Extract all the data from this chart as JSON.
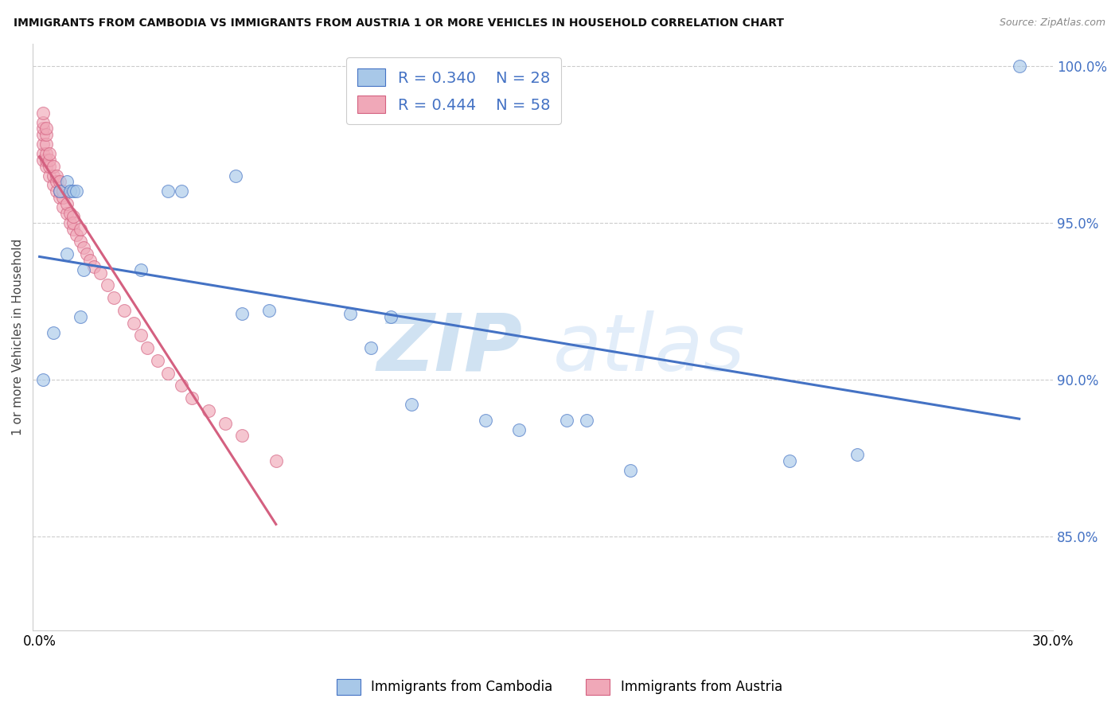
{
  "title": "IMMIGRANTS FROM CAMBODIA VS IMMIGRANTS FROM AUSTRIA 1 OR MORE VEHICLES IN HOUSEHOLD CORRELATION CHART",
  "source": "Source: ZipAtlas.com",
  "ylabel": "1 or more Vehicles in Household",
  "xlim": [
    0.0,
    0.3
  ],
  "ylim": [
    0.82,
    1.007
  ],
  "yticks": [
    0.85,
    0.9,
    0.95,
    1.0
  ],
  "ytick_labels": [
    "85.0%",
    "90.0%",
    "95.0%",
    "100.0%"
  ],
  "xticks": [
    0.0,
    0.05,
    0.1,
    0.15,
    0.2,
    0.25,
    0.3
  ],
  "xtick_labels": [
    "0.0%",
    "",
    "",
    "",
    "",
    "",
    "30.0%"
  ],
  "legend_r_cambodia": "R = 0.340",
  "legend_n_cambodia": "N = 28",
  "legend_r_austria": "R = 0.444",
  "legend_n_austria": "N = 58",
  "color_cambodia": "#a8c8e8",
  "color_austria": "#f0a8b8",
  "trendline_color_cambodia": "#4472c4",
  "trendline_color_austria": "#d46080",
  "watermark_zip": "ZIP",
  "watermark_atlas": "atlas",
  "cambodia_x": [
    0.001,
    0.004,
    0.006,
    0.008,
    0.009,
    0.01,
    0.011,
    0.012,
    0.013,
    0.03,
    0.038,
    0.042,
    0.058,
    0.068,
    0.092,
    0.098,
    0.104,
    0.11,
    0.132,
    0.142,
    0.156,
    0.162,
    0.175,
    0.222,
    0.242,
    0.06,
    0.29,
    0.008
  ],
  "cambodia_y": [
    0.9,
    0.915,
    0.96,
    0.963,
    0.96,
    0.96,
    0.96,
    0.92,
    0.935,
    0.935,
    0.96,
    0.96,
    0.965,
    0.922,
    0.921,
    0.91,
    0.92,
    0.892,
    0.887,
    0.884,
    0.887,
    0.887,
    0.871,
    0.874,
    0.876,
    0.921,
    1.0,
    0.94
  ],
  "austria_x": [
    0.001,
    0.001,
    0.001,
    0.001,
    0.001,
    0.001,
    0.001,
    0.002,
    0.002,
    0.002,
    0.002,
    0.002,
    0.002,
    0.003,
    0.003,
    0.003,
    0.003,
    0.004,
    0.004,
    0.004,
    0.005,
    0.005,
    0.005,
    0.006,
    0.006,
    0.006,
    0.007,
    0.007,
    0.007,
    0.008,
    0.008,
    0.009,
    0.009,
    0.01,
    0.01,
    0.01,
    0.011,
    0.012,
    0.012,
    0.013,
    0.014,
    0.015,
    0.016,
    0.018,
    0.02,
    0.022,
    0.025,
    0.028,
    0.03,
    0.032,
    0.035,
    0.038,
    0.042,
    0.045,
    0.05,
    0.055,
    0.06,
    0.07
  ],
  "austria_y": [
    0.97,
    0.972,
    0.975,
    0.978,
    0.98,
    0.982,
    0.985,
    0.968,
    0.97,
    0.972,
    0.975,
    0.978,
    0.98,
    0.965,
    0.968,
    0.97,
    0.972,
    0.962,
    0.965,
    0.968,
    0.96,
    0.963,
    0.965,
    0.958,
    0.96,
    0.963,
    0.955,
    0.958,
    0.96,
    0.953,
    0.956,
    0.95,
    0.953,
    0.948,
    0.95,
    0.952,
    0.946,
    0.944,
    0.948,
    0.942,
    0.94,
    0.938,
    0.936,
    0.934,
    0.93,
    0.926,
    0.922,
    0.918,
    0.914,
    0.91,
    0.906,
    0.902,
    0.898,
    0.894,
    0.89,
    0.886,
    0.882,
    0.874
  ]
}
